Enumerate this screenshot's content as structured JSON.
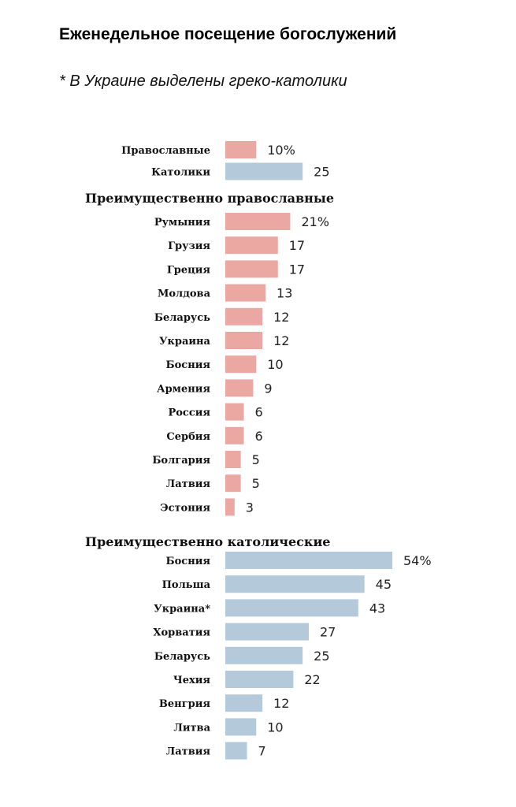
{
  "title": "Еженедельное посещение богослужений",
  "subtitle": "* В Украине выделены греко-католики",
  "colors": {
    "orthodox": "#eba8a3",
    "catholic": "#b4c9da"
  },
  "chart_data": {
    "type": "bar",
    "orientation": "horizontal",
    "xlim": [
      0,
      54
    ],
    "grid": false,
    "unit_suffix": "%",
    "groups": [
      {
        "name": "",
        "categories": [
          "Православные",
          "Католики"
        ],
        "values": [
          10,
          25
        ],
        "value_labels": [
          "10%",
          "25"
        ],
        "colors": [
          "orthodox",
          "catholic"
        ]
      },
      {
        "name": "Преимущественно православные",
        "categories": [
          "Румыния",
          "Грузия",
          "Греция",
          "Молдова",
          "Беларусь",
          "Украина",
          "Босния",
          "Армения",
          "Россия",
          "Сербия",
          "Болгария",
          "Латвия",
          "Эстония"
        ],
        "values": [
          21,
          17,
          17,
          13,
          12,
          12,
          10,
          9,
          6,
          6,
          5,
          5,
          3
        ],
        "value_labels": [
          "21%",
          "17",
          "17",
          "13",
          "12",
          "12",
          "10",
          "9",
          "6",
          "6",
          "5",
          "5",
          "3"
        ],
        "color": "orthodox"
      },
      {
        "name": "Преимущественно католические",
        "categories": [
          "Босния",
          "Польша",
          "Украина*",
          "Хорватия",
          "Беларусь",
          "Чехия",
          "Венгрия",
          "Литва",
          "Латвия"
        ],
        "values": [
          54,
          45,
          43,
          27,
          25,
          22,
          12,
          10,
          7
        ],
        "value_labels": [
          "54%",
          "45",
          "43",
          "27",
          "25",
          "22",
          "12",
          "10",
          "7"
        ],
        "color": "catholic"
      }
    ]
  }
}
